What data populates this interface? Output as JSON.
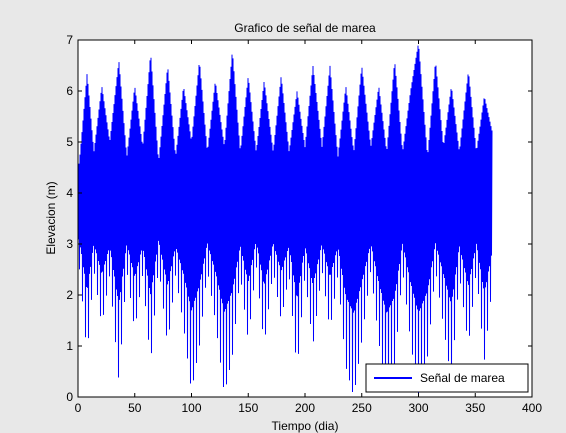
{
  "window": {
    "background": "#e8e8e8"
  },
  "chart_data": {
    "type": "line",
    "title": "Grafico de señal de marea",
    "xlabel": "Tiempo (dia)",
    "ylabel": "Elevacion (m)",
    "xlim": [
      0,
      400
    ],
    "ylim": [
      0,
      7
    ],
    "xticks": [
      "0",
      "50",
      "100",
      "150",
      "200",
      "250",
      "300",
      "350",
      "400"
    ],
    "yticks": [
      "0",
      "1",
      "2",
      "3",
      "4",
      "5",
      "6",
      "7"
    ],
    "grid": false,
    "legend_position": "bottom-right",
    "series_color": "#0000ff",
    "x_range": [
      0,
      365
    ],
    "mean_level": 3.65,
    "envelope": {
      "x": [
        0,
        2,
        8,
        14,
        21,
        28,
        36,
        43,
        50,
        57,
        64,
        71,
        79,
        86,
        93,
        100,
        107,
        114,
        121,
        129,
        136,
        143,
        150,
        157,
        164,
        172,
        179,
        186,
        193,
        200,
        207,
        215,
        222,
        229,
        236,
        243,
        250,
        258,
        265,
        272,
        279,
        286,
        293,
        300,
        308,
        315,
        322,
        329,
        336,
        344,
        351,
        358,
        365
      ],
      "high": [
        4.4,
        4.8,
        6.35,
        4.8,
        6.1,
        5.0,
        6.6,
        4.7,
        6.1,
        4.9,
        6.75,
        4.6,
        6.5,
        4.7,
        6.1,
        5.0,
        6.6,
        4.8,
        6.2,
        4.9,
        6.8,
        4.8,
        6.3,
        4.8,
        6.2,
        4.8,
        6.3,
        4.8,
        6.0,
        4.9,
        6.5,
        4.9,
        6.5,
        4.7,
        6.1,
        4.8,
        6.5,
        4.9,
        6.1,
        4.8,
        6.6,
        4.8,
        6.0,
        6.95,
        4.7,
        6.6,
        4.9,
        6.1,
        4.8,
        6.4,
        4.8,
        5.9,
        5.2
      ],
      "low": [
        2.7,
        2.4,
        0.8,
        2.5,
        1.4,
        2.4,
        0.3,
        2.5,
        1.3,
        2.4,
        0.65,
        2.6,
        1.0,
        2.4,
        1.4,
        0.1,
        1.0,
        2.5,
        1.5,
        0.05,
        0.8,
        2.4,
        1.1,
        2.6,
        1.0,
        2.5,
        1.5,
        2.4,
        0.5,
        2.4,
        1.0,
        2.5,
        1.3,
        2.4,
        0.6,
        0.0,
        1.1,
        2.5,
        1.1,
        0.0,
        0.6,
        2.5,
        1.1,
        0.0,
        0.8,
        2.5,
        1.4,
        0.3,
        2.4,
        1.0,
        2.5,
        0.7,
        2.2
      ]
    },
    "series": [
      {
        "name": "Señal de marea"
      }
    ]
  }
}
